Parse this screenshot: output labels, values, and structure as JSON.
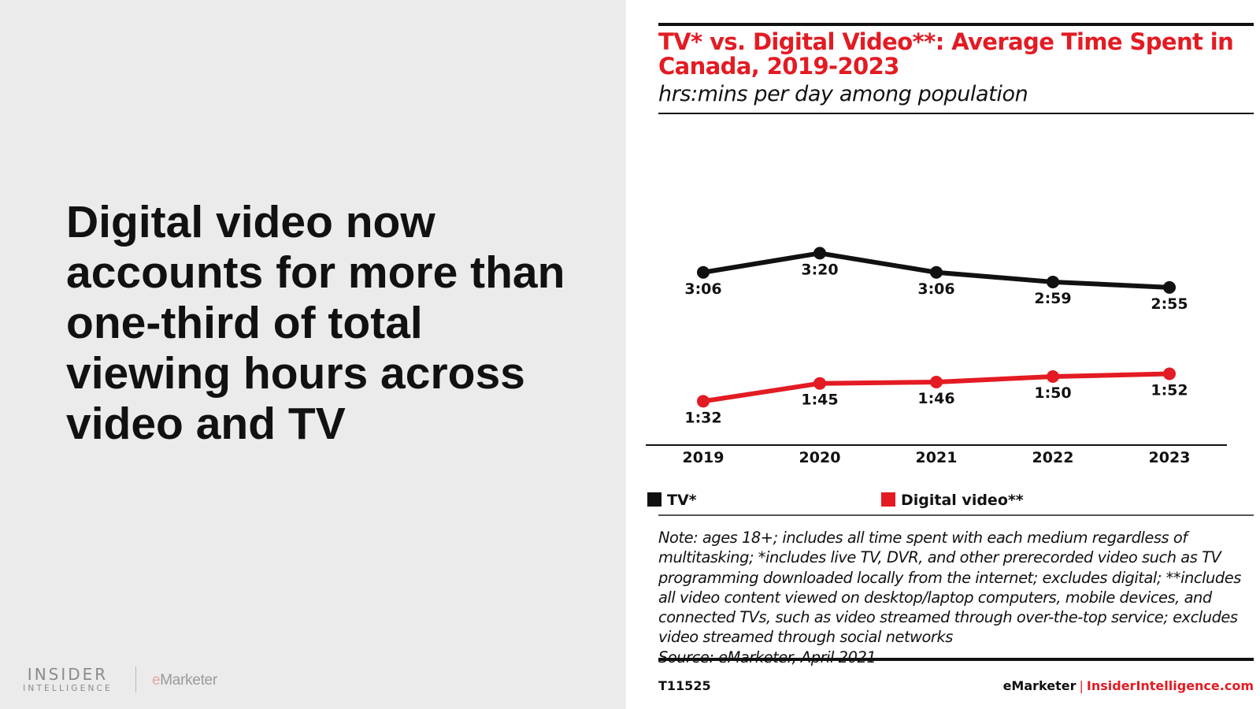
{
  "headline": "Digital video now accounts for more than one-third of total viewing hours across video and TV",
  "branding": {
    "insider_top": "INSIDER",
    "insider_bottom": "INTELLIGENCE",
    "emarketer_e": "e",
    "emarketer_rest": "Marketer"
  },
  "colors": {
    "accent": "#e31b23",
    "tv": "#111111",
    "digital": "#e31b23",
    "left_panel": "#ebebeb"
  },
  "chart_data": {
    "type": "line",
    "title": "TV* vs. Digital Video**: Average Time Spent in Canada, 2019-2023",
    "subtitle": "hrs:mins per day among population",
    "x": [
      "2019",
      "2020",
      "2021",
      "2022",
      "2023"
    ],
    "y_unit": "minutes per day",
    "ylim": [
      60,
      230
    ],
    "grid": false,
    "legend_position": "bottom",
    "series": [
      {
        "name": "TV*",
        "color": "#111111",
        "values": [
          186,
          200,
          186,
          179,
          175
        ],
        "labels": [
          "3:06",
          "3:20",
          "3:06",
          "2:59",
          "2:55"
        ]
      },
      {
        "name": "Digital video**",
        "color": "#e31b23",
        "values": [
          92,
          105,
          106,
          110,
          112
        ],
        "labels": [
          "1:32",
          "1:45",
          "1:46",
          "1:50",
          "1:52"
        ]
      }
    ],
    "note": "Note: ages 18+; includes all time spent with each medium regardless of multitasking; *includes live TV, DVR, and other prerecorded video such as TV programming downloaded locally from the internet; excludes digital; **includes all video content viewed on desktop/laptop computers, mobile devices, and connected TVs, such as video streamed through over-the-top service; excludes video streamed through social networks",
    "source": "Source: eMarketer, April 2021"
  },
  "footer": {
    "chart_id": "T11525",
    "brand_left": "eMarketer",
    "brand_sep": "|",
    "brand_right": "InsiderIntelligence.com"
  }
}
